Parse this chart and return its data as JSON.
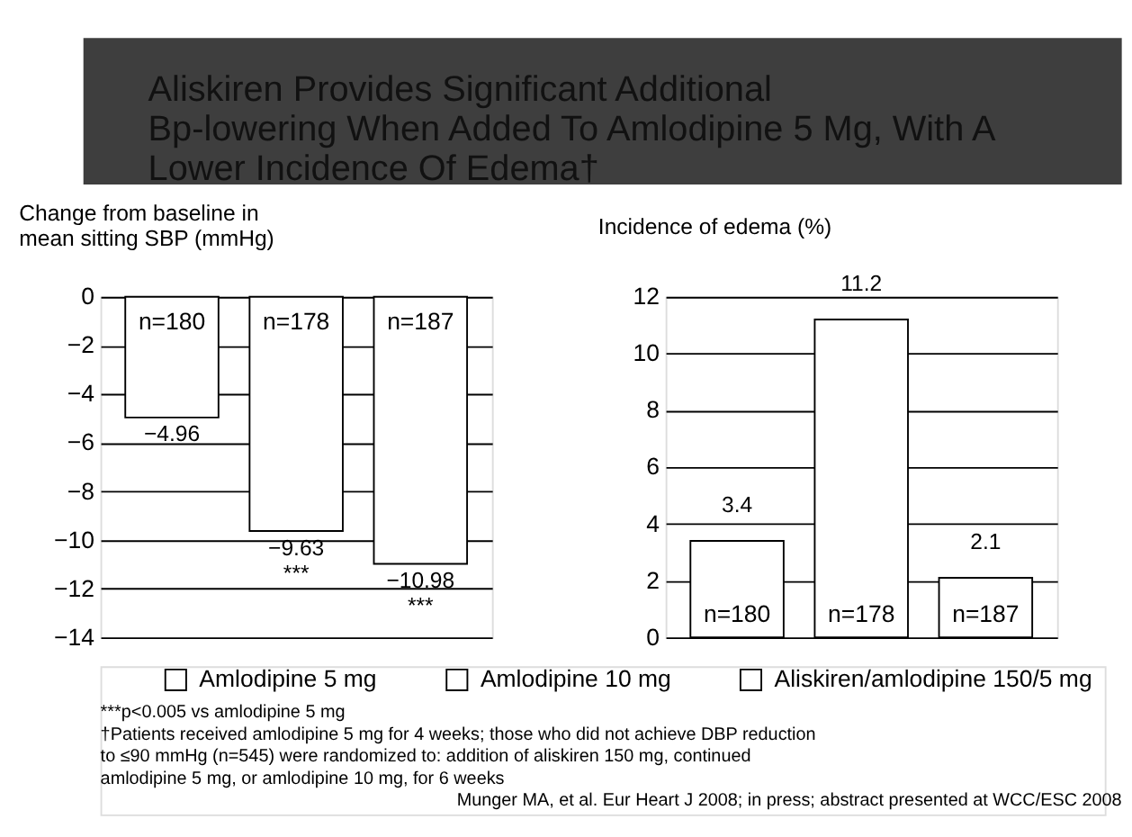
{
  "chart_data": [
    {
      "type": "bar",
      "title": "Aliskiren Provides Significant Additional Bp-lowering When Added To Amlodipine 5 Mg, With A Lower Incidence Of Edema†",
      "ylabel": "Change from baseline in mean sitting SBP (mmHg)",
      "categories": [
        "n=180",
        "n=178",
        "n=187"
      ],
      "series": [
        {
          "name": "Amlodipine 5 mg",
          "color": "#ffffff",
          "values": [
            -4.96,
            null,
            null
          ],
          "value_labels": [
            "−4.96",
            null,
            null
          ]
        },
        {
          "name": "Amlodipine 10 mg",
          "color": "#ffffff",
          "values": [
            null,
            -9.63,
            null
          ],
          "value_labels": [
            null,
            "−9.63\n***",
            null
          ]
        },
        {
          "name": "Aliskiren/amlodipine 150/5 mg",
          "color": "#ffffff",
          "values": [
            null,
            null,
            -10.98
          ],
          "value_labels": [
            null,
            null,
            "−10.98\n***"
          ]
        }
      ],
      "ylim": [
        -14,
        0
      ],
      "yticks": [
        {
          "value": 0,
          "label": "0"
        },
        {
          "value": -2,
          "label": "−2"
        },
        {
          "value": -4,
          "label": "−4"
        },
        {
          "value": -6,
          "label": "−6"
        },
        {
          "value": -8,
          "label": "−8"
        },
        {
          "value": -10,
          "label": "−10"
        },
        {
          "value": -12,
          "label": "−12"
        },
        {
          "value": -14,
          "label": "−14"
        }
      ],
      "grid": "y",
      "legend": "bottom",
      "annotations": [
        "***p<0.005 vs amlodipine 5 mg",
        "†Patients received amlodipine 5 mg for 4 weeks; those who did not achieve DBP reduction to ≤90 mmHg (n=545) were randomized to: addition of aliskiren 150 mg, continued amlodipine 5 mg, or amlodipine 10 mg, for 6 weeks",
        "Munger MA, et al. Eur Heart J 2008; in press; abstract presented at WCC/ESC 2008"
      ]
    },
    {
      "type": "bar",
      "ylabel": "Incidence of edema (%)",
      "categories": [
        "n=180",
        "n=178",
        "n=187"
      ],
      "series": [
        {
          "color": "#ffffff",
          "values": [
            3.4,
            null,
            null
          ],
          "value_labels": [
            "3.4",
            null,
            null
          ]
        },
        {
          "color": "#ffffff",
          "values": [
            null,
            11.2,
            null
          ],
          "value_labels": [
            null,
            "11.2",
            null
          ]
        },
        {
          "color": "#ffffff",
          "values": [
            null,
            null,
            2.1
          ],
          "value_labels": [
            null,
            null,
            "2.1"
          ]
        }
      ],
      "ylim": [
        0,
        12
      ],
      "yticks": [
        0,
        2,
        4,
        6,
        8,
        10,
        12
      ],
      "grid": "y"
    }
  ]
}
